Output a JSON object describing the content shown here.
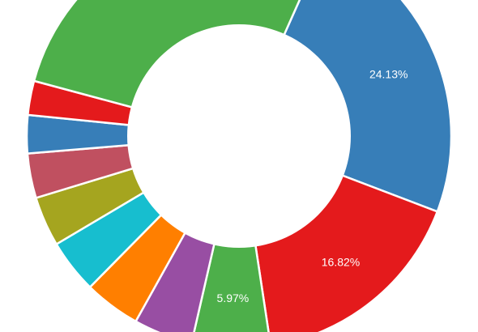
{
  "chart_data": {
    "type": "pie",
    "variant": "donut",
    "title": "",
    "slices": [
      {
        "value": 24.13,
        "label": "24.13%",
        "color": "#377EB8"
      },
      {
        "value": 16.82,
        "label": "16.82%",
        "color": "#E41A1C"
      },
      {
        "value": 5.97,
        "label": "5.97%",
        "color": "#4DAF4A"
      },
      {
        "value": 4.5,
        "label": "",
        "color": "#984EA3"
      },
      {
        "value": 4.3,
        "label": "",
        "color": "#FF7F00"
      },
      {
        "value": 4.1,
        "label": "",
        "color": "#17BECF"
      },
      {
        "value": 3.8,
        "label": "",
        "color": "#A5A51F"
      },
      {
        "value": 3.4,
        "label": "",
        "color": "#C05060"
      },
      {
        "value": 2.9,
        "label": "",
        "color": "#377EB8"
      },
      {
        "value": 2.6,
        "label": "",
        "color": "#E41A1C"
      },
      {
        "value": 27.48,
        "label": "",
        "color": "#4DAF4A"
      }
    ]
  }
}
